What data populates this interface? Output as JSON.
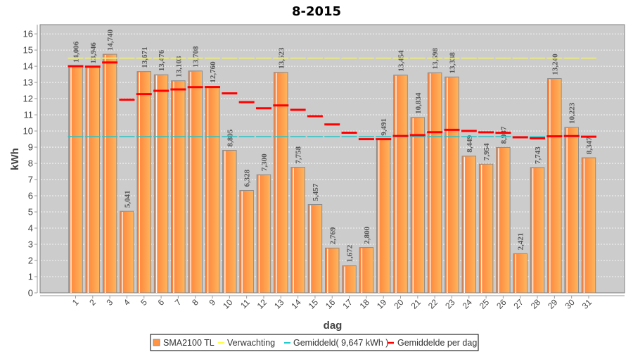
{
  "chart_data": {
    "type": "bar",
    "title": "8-2015",
    "xlabel": "dag",
    "ylabel": "kWh",
    "ylim": [
      0,
      16.57
    ],
    "grid": true,
    "legend_position": "bottom",
    "yticks": [
      "0",
      "1",
      "2",
      "3",
      "4",
      "5",
      "6",
      "7",
      "8",
      "9",
      "10",
      "11",
      "12",
      "13",
      "14",
      "15",
      "16"
    ],
    "categories": [
      "1",
      "2",
      "3",
      "4",
      "5",
      "6",
      "7",
      "8",
      "9",
      "10",
      "11",
      "12",
      "13",
      "14",
      "15",
      "16",
      "17",
      "18",
      "19",
      "20",
      "21",
      "22",
      "23",
      "24",
      "25",
      "26",
      "27",
      "28",
      "29",
      "30",
      "31"
    ],
    "series": [
      {
        "name": "SMA2100 TL",
        "kind": "bar",
        "color": "#ff9445",
        "values": [
          14.006,
          13.946,
          14.74,
          5.041,
          13.671,
          13.476,
          13.103,
          13.708,
          12.76,
          8.805,
          6.328,
          7.3,
          13.623,
          7.758,
          5.457,
          2.769,
          1.672,
          2.8,
          9.491,
          13.454,
          10.834,
          13.598,
          13.338,
          8.449,
          7.954,
          8.987,
          2.421,
          7.743,
          13.24,
          10.223,
          8.347
        ],
        "value_labels": [
          "14,006",
          "13,946",
          "14,740",
          "5,041",
          "13,671",
          "13,476",
          "13,103",
          "13,708",
          "12,760",
          "8,805",
          "6,328",
          "7,300",
          "13,623",
          "7,758",
          "5,457",
          "2,769",
          "1,672",
          "2,800",
          "9,491",
          "13,454",
          "10,834",
          "13,598",
          "13,338",
          "8,449",
          "7,954",
          "8,987",
          "2,421",
          "7,743",
          "13,240",
          "10,223",
          "8,347"
        ]
      },
      {
        "name": "Verwachting",
        "kind": "level",
        "color": "#e8e880",
        "values": [
          14.5,
          14.5,
          14.5,
          14.5,
          14.5,
          14.5,
          14.5,
          14.5,
          14.5,
          14.5,
          14.5,
          14.5,
          14.5,
          14.5,
          14.5,
          14.5,
          14.5,
          14.5,
          14.5,
          14.5,
          14.5,
          14.5,
          14.5,
          14.5,
          14.5,
          14.5,
          14.5,
          14.5,
          14.5,
          14.5,
          14.5
        ]
      },
      {
        "name": "Gemiddeld( 9,647 kWh )",
        "kind": "level",
        "color": "#2ec4c4",
        "values": [
          9.647,
          9.647,
          9.647,
          9.647,
          9.647,
          9.647,
          9.647,
          9.647,
          9.647,
          9.647,
          9.647,
          9.647,
          9.647,
          9.647,
          9.647,
          9.647,
          9.647,
          9.647,
          9.647,
          9.647,
          9.647,
          9.647,
          9.647,
          9.647,
          9.647,
          9.647,
          9.647,
          9.647,
          9.647,
          9.647,
          9.647
        ]
      },
      {
        "name": "Gemiddelde per dag",
        "kind": "level",
        "color": "#ff0000",
        "values": [
          14.006,
          13.976,
          14.231,
          11.933,
          12.281,
          12.48,
          12.569,
          12.711,
          12.717,
          12.326,
          11.78,
          11.407,
          11.577,
          11.305,
          10.915,
          10.406,
          9.892,
          9.498,
          9.498,
          9.695,
          9.75,
          9.925,
          10.073,
          10.005,
          9.923,
          9.887,
          9.611,
          9.544,
          9.672,
          9.69,
          9.647
        ]
      }
    ],
    "colors": {
      "plot_background": "#cccccc",
      "gridline": "#ffffff",
      "bar_border": "#8c8c8c",
      "bar_gradient_start": "#ff7f36",
      "bar_gradient_end": "#ffb65e"
    }
  }
}
